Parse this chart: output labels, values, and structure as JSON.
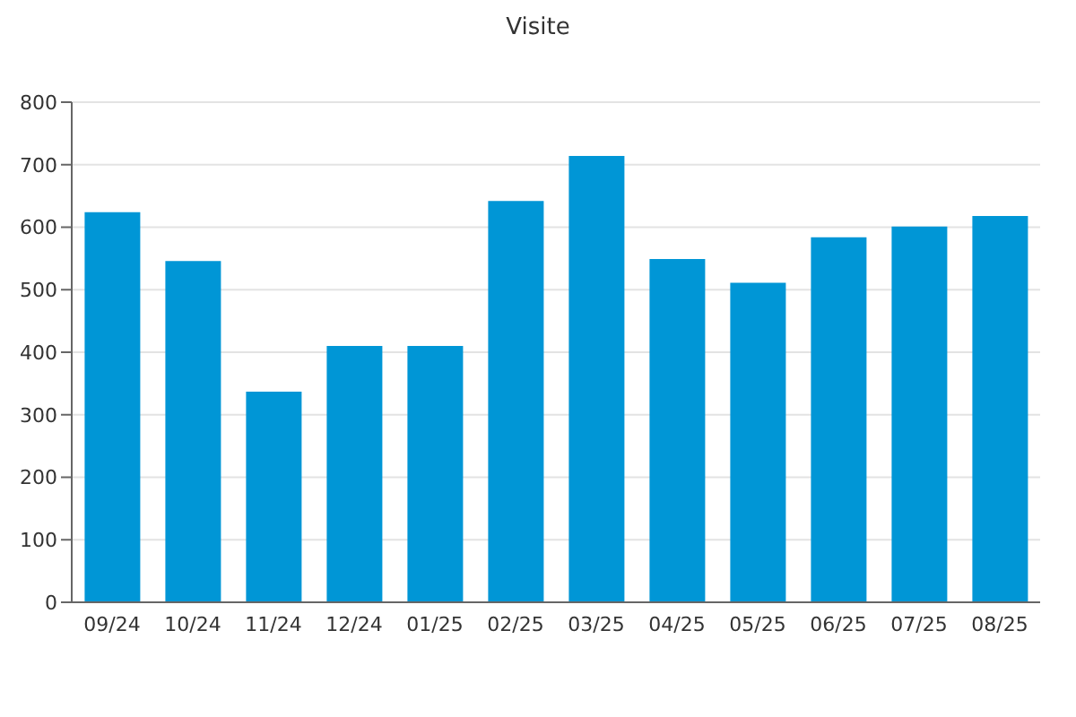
{
  "chart_data": {
    "type": "bar",
    "title": "Visite",
    "categories": [
      "09/24",
      "10/24",
      "11/24",
      "12/24",
      "01/25",
      "02/25",
      "03/25",
      "04/25",
      "05/25",
      "06/25",
      "07/25",
      "08/25"
    ],
    "values": [
      624,
      546,
      337,
      410,
      410,
      642,
      714,
      549,
      511,
      584,
      601,
      618
    ],
    "color": "#0096d6",
    "ylim": [
      0,
      800
    ],
    "yticks": [
      0,
      100,
      200,
      300,
      400,
      500,
      600,
      700,
      800
    ],
    "grid": "y"
  }
}
